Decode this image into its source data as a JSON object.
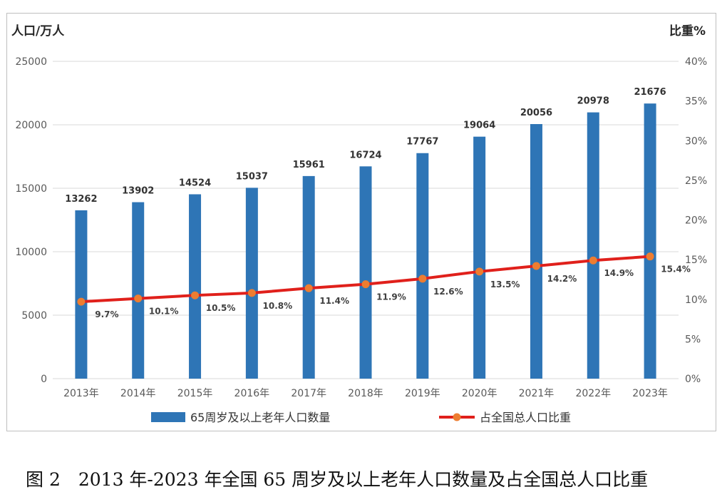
{
  "chart_data": {
    "type": "bar+line",
    "categories": [
      "2013年",
      "2014年",
      "2015年",
      "2016年",
      "2017年",
      "2018年",
      "2019年",
      "2020年",
      "2021年",
      "2022年",
      "2023年"
    ],
    "series": [
      {
        "name": "65周岁及以上老年人口数量",
        "type": "bar",
        "axis": "left",
        "color": "#2e75b6",
        "values": [
          13262,
          13902,
          14524,
          15037,
          15961,
          16724,
          17767,
          19064,
          20056,
          20978,
          21676
        ],
        "labels": [
          "13262",
          "13902",
          "14524",
          "15037",
          "15961",
          "16724",
          "17767",
          "19064",
          "20056",
          "20978",
          "21676"
        ]
      },
      {
        "name": "占全国总人口比重",
        "type": "line",
        "axis": "right",
        "color": "#e0201b",
        "marker_color": "#ed7d31",
        "values": [
          9.7,
          10.1,
          10.5,
          10.8,
          11.4,
          11.9,
          12.6,
          13.5,
          14.2,
          14.9,
          15.4
        ],
        "labels": [
          "9.7%",
          "10.1%",
          "10.5%",
          "10.8%",
          "11.4%",
          "11.9%",
          "12.6%",
          "13.5%",
          "14.2%",
          "14.9%",
          "15.4%"
        ]
      }
    ],
    "y_left": {
      "title": "人口/万人",
      "min": 0,
      "max": 25000,
      "ticks": [
        "0",
        "5000",
        "10000",
        "15000",
        "20000",
        "25000"
      ]
    },
    "y_right": {
      "title": "比重%",
      "min": 0,
      "max": 40,
      "ticks": [
        "0%",
        "5%",
        "10%",
        "15%",
        "20%",
        "25%",
        "30%",
        "35%",
        "40%"
      ]
    },
    "grid": true,
    "legend": "bottom"
  },
  "caption": "图 2　2013 年-2023 年全国 65 周岁及以上老年人口数量及占全国总人口比重"
}
